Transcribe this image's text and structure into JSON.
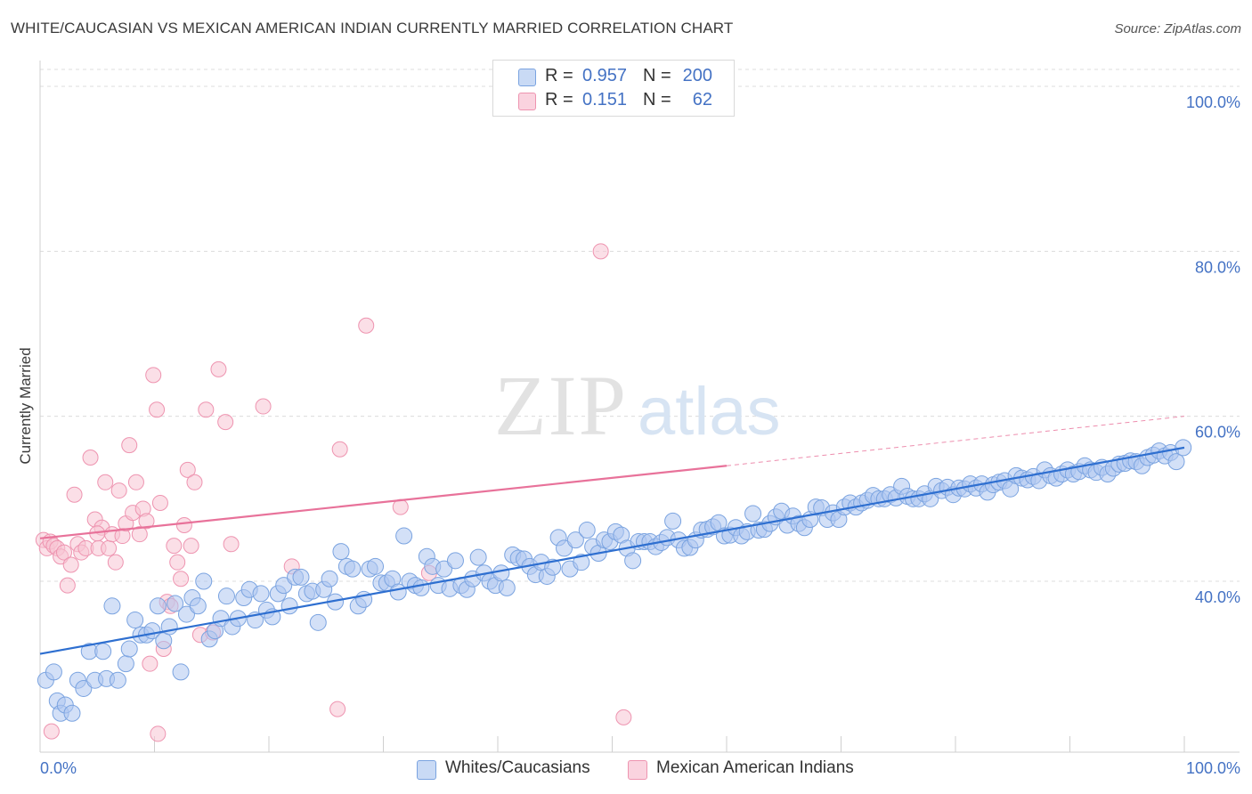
{
  "title": "WHITE/CAUCASIAN VS MEXICAN AMERICAN INDIAN CURRENTLY MARRIED CORRELATION CHART",
  "source": "Source: ZipAtlas.com",
  "watermark": {
    "zip": "ZIP",
    "atlas": "atlas"
  },
  "legend": {
    "rows": [
      {
        "r_label": "R =",
        "r_value": "0.957",
        "n_label": "N =",
        "n_value": "200",
        "color": "#aec7f0"
      },
      {
        "r_label": "R =",
        "r_value": "0.151",
        "n_label": "N =",
        "n_value": "62",
        "color": "#f7bfd0"
      }
    ]
  },
  "bottom_legend": [
    "Whites/Caucasians",
    "Mexican American Indians"
  ],
  "chart_data": {
    "type": "scatter",
    "title": "WHITE/CAUCASIAN VS MEXICAN AMERICAN INDIAN CURRENTLY MARRIED CORRELATION CHART",
    "xlabel": "",
    "ylabel": "Currently Married",
    "xlim": [
      0,
      100
    ],
    "ylim": [
      18,
      103
    ],
    "x_tick_labels": [
      "0.0%",
      "100.0%"
    ],
    "y_tick_labels": [
      "40.0%",
      "60.0%",
      "80.0%",
      "100.0%"
    ],
    "y_ticks": [
      40,
      60,
      80,
      100
    ],
    "grid": "horizontal dashed",
    "legend_position": "top-center",
    "colors": {
      "blue_fill": "#aec7f0",
      "blue_edge": "#7aa3e0",
      "blue_line": "#2e6fd0",
      "pink_fill": "#f7c4d3",
      "pink_edge": "#ee94b0",
      "pink_line": "#e8729a"
    },
    "series": [
      {
        "name": "Whites/Caucasians",
        "trend": {
          "x0": 0,
          "y0": 31.2,
          "x1": 100,
          "y1": 56.2
        },
        "points": [
          [
            0.5,
            28
          ],
          [
            1.2,
            29
          ],
          [
            1.5,
            25.5
          ],
          [
            1.8,
            24
          ],
          [
            2.2,
            25
          ],
          [
            2.8,
            24
          ],
          [
            3.3,
            28
          ],
          [
            3.8,
            27
          ],
          [
            4.3,
            31.5
          ],
          [
            4.8,
            28
          ],
          [
            5.5,
            31.5
          ],
          [
            5.8,
            28.2
          ],
          [
            6.3,
            37
          ],
          [
            6.8,
            28
          ],
          [
            7.5,
            30
          ],
          [
            7.8,
            31.8
          ],
          [
            8.3,
            35.3
          ],
          [
            8.8,
            33.5
          ],
          [
            9.3,
            33.5
          ],
          [
            9.8,
            34
          ],
          [
            10.3,
            37
          ],
          [
            10.8,
            32.8
          ],
          [
            11.3,
            34.5
          ],
          [
            11.8,
            37.3
          ],
          [
            12.3,
            29
          ],
          [
            12.8,
            36
          ],
          [
            13.3,
            38
          ],
          [
            13.8,
            37
          ],
          [
            14.3,
            40
          ],
          [
            14.8,
            33
          ],
          [
            15.3,
            34
          ],
          [
            15.8,
            35.5
          ],
          [
            16.3,
            38.2
          ],
          [
            16.8,
            34.5
          ],
          [
            17.3,
            35.5
          ],
          [
            17.8,
            38
          ],
          [
            18.3,
            39
          ],
          [
            18.8,
            35.3
          ],
          [
            19.3,
            38.5
          ],
          [
            19.8,
            36.5
          ],
          [
            20.3,
            35.7
          ],
          [
            20.8,
            38.5
          ],
          [
            21.3,
            39.5
          ],
          [
            21.8,
            37
          ],
          [
            22.3,
            40.5
          ],
          [
            22.8,
            40.5
          ],
          [
            23.3,
            38.5
          ],
          [
            23.8,
            38.8
          ],
          [
            24.3,
            35
          ],
          [
            24.8,
            39
          ],
          [
            25.3,
            40.3
          ],
          [
            25.8,
            37.5
          ],
          [
            26.3,
            43.6
          ],
          [
            26.8,
            41.8
          ],
          [
            27.3,
            41.5
          ],
          [
            27.8,
            37
          ],
          [
            28.3,
            37.8
          ],
          [
            28.8,
            41.5
          ],
          [
            29.3,
            41.8
          ],
          [
            29.8,
            39.8
          ],
          [
            30.3,
            39.8
          ],
          [
            30.8,
            40.3
          ],
          [
            31.3,
            38.7
          ],
          [
            31.8,
            45.5
          ],
          [
            32.3,
            40
          ],
          [
            32.8,
            39.5
          ],
          [
            33.3,
            39.2
          ],
          [
            33.8,
            43
          ],
          [
            34.3,
            41.8
          ],
          [
            34.8,
            39.5
          ],
          [
            35.3,
            41.5
          ],
          [
            35.8,
            39.1
          ],
          [
            36.3,
            42.5
          ],
          [
            36.8,
            39.5
          ],
          [
            37.3,
            39
          ],
          [
            37.8,
            40.3
          ],
          [
            38.3,
            42.9
          ],
          [
            38.8,
            41
          ],
          [
            39.3,
            40
          ],
          [
            39.8,
            39.5
          ],
          [
            40.3,
            41
          ],
          [
            40.8,
            39.2
          ],
          [
            41.3,
            43.2
          ],
          [
            41.8,
            42.8
          ],
          [
            42.3,
            42.7
          ],
          [
            42.8,
            41.8
          ],
          [
            43.3,
            40.8
          ],
          [
            43.8,
            42.3
          ],
          [
            44.3,
            40.6
          ],
          [
            44.8,
            41.7
          ],
          [
            45.3,
            45.3
          ],
          [
            45.8,
            44
          ],
          [
            46.3,
            41.5
          ],
          [
            46.8,
            45
          ],
          [
            47.3,
            42.3
          ],
          [
            47.8,
            46.2
          ],
          [
            48.3,
            44.2
          ],
          [
            48.8,
            43.4
          ],
          [
            49.3,
            45
          ],
          [
            49.8,
            44.8
          ],
          [
            50.3,
            46
          ],
          [
            50.8,
            45.6
          ],
          [
            51.3,
            44
          ],
          [
            51.8,
            42.5
          ],
          [
            52.3,
            44.8
          ],
          [
            52.8,
            44.8
          ],
          [
            53.3,
            44.8
          ],
          [
            53.8,
            44.2
          ],
          [
            54.3,
            44.7
          ],
          [
            54.8,
            45.3
          ],
          [
            55.3,
            47.3
          ],
          [
            55.8,
            45
          ],
          [
            56.3,
            44
          ],
          [
            56.8,
            44.1
          ],
          [
            57.3,
            45
          ],
          [
            57.8,
            46.2
          ],
          [
            58.3,
            46.3
          ],
          [
            58.8,
            46.6
          ],
          [
            59.3,
            47.1
          ],
          [
            59.8,
            45.5
          ],
          [
            60.3,
            45.6
          ],
          [
            60.8,
            46.5
          ],
          [
            61.3,
            45.5
          ],
          [
            61.8,
            46
          ],
          [
            62.3,
            48.2
          ],
          [
            62.8,
            46.2
          ],
          [
            63.3,
            46.3
          ],
          [
            63.8,
            47
          ],
          [
            64.3,
            47.8
          ],
          [
            64.8,
            48.5
          ],
          [
            65.3,
            46.8
          ],
          [
            65.8,
            47.9
          ],
          [
            66.3,
            47
          ],
          [
            66.8,
            46.5
          ],
          [
            67.3,
            47.5
          ],
          [
            67.8,
            49
          ],
          [
            68.3,
            48.9
          ],
          [
            68.8,
            47.5
          ],
          [
            69.3,
            48.3
          ],
          [
            69.8,
            47.5
          ],
          [
            70.3,
            49
          ],
          [
            70.8,
            49.5
          ],
          [
            71.3,
            49
          ],
          [
            71.8,
            49.5
          ],
          [
            72.3,
            49.8
          ],
          [
            72.8,
            50.4
          ],
          [
            73.3,
            50
          ],
          [
            73.8,
            50
          ],
          [
            74.3,
            50.5
          ],
          [
            74.8,
            50.1
          ],
          [
            75.3,
            51.5
          ],
          [
            75.8,
            50.3
          ],
          [
            76.3,
            50
          ],
          [
            76.8,
            50
          ],
          [
            77.3,
            50.6
          ],
          [
            77.8,
            50
          ],
          [
            78.3,
            51.5
          ],
          [
            78.8,
            51
          ],
          [
            79.3,
            51.4
          ],
          [
            79.8,
            50.5
          ],
          [
            80.3,
            51.3
          ],
          [
            80.8,
            51.2
          ],
          [
            81.3,
            51.8
          ],
          [
            81.8,
            51.3
          ],
          [
            82.3,
            51.8
          ],
          [
            82.8,
            50.8
          ],
          [
            83.3,
            51.7
          ],
          [
            83.8,
            52
          ],
          [
            84.3,
            52.2
          ],
          [
            84.8,
            51.2
          ],
          [
            85.3,
            52.8
          ],
          [
            85.8,
            52.5
          ],
          [
            86.3,
            52.3
          ],
          [
            86.8,
            52.7
          ],
          [
            87.3,
            52.2
          ],
          [
            87.8,
            53.5
          ],
          [
            88.3,
            52.8
          ],
          [
            88.8,
            52.5
          ],
          [
            89.3,
            53
          ],
          [
            89.8,
            53.5
          ],
          [
            90.3,
            53
          ],
          [
            90.8,
            53.3
          ],
          [
            91.3,
            54
          ],
          [
            91.8,
            53.5
          ],
          [
            92.3,
            53.2
          ],
          [
            92.8,
            53.8
          ],
          [
            93.3,
            53
          ],
          [
            93.8,
            53.7
          ],
          [
            94.3,
            54.2
          ],
          [
            94.8,
            54.3
          ],
          [
            95.3,
            54.6
          ],
          [
            95.8,
            54.5
          ],
          [
            96.3,
            54
          ],
          [
            96.8,
            55
          ],
          [
            97.3,
            55.3
          ],
          [
            97.8,
            55.8
          ],
          [
            98.3,
            55.2
          ],
          [
            98.8,
            55.6
          ],
          [
            99.3,
            54.5
          ],
          [
            99.9,
            56.2
          ]
        ]
      },
      {
        "name": "Mexican American Indians",
        "trend": {
          "x0": 0,
          "y0": 45.2,
          "x1": 60,
          "y1": 54
        },
        "dashed_extension": {
          "x0": 60,
          "y0": 54,
          "x1": 100,
          "y1": 60
        },
        "points": [
          [
            0.3,
            45
          ],
          [
            0.6,
            44
          ],
          [
            0.9,
            44.8
          ],
          [
            1.2,
            44.3
          ],
          [
            1.5,
            44
          ],
          [
            1.8,
            43
          ],
          [
            2.1,
            43.5
          ],
          [
            2.4,
            39.5
          ],
          [
            2.7,
            42
          ],
          [
            3,
            50.5
          ],
          [
            3.3,
            44.5
          ],
          [
            3.6,
            43.5
          ],
          [
            4,
            44
          ],
          [
            4.4,
            55
          ],
          [
            4.8,
            47.5
          ],
          [
            5.1,
            44
          ],
          [
            5.4,
            46.5
          ],
          [
            5.7,
            52
          ],
          [
            6,
            44
          ],
          [
            6.3,
            45.7
          ],
          [
            6.6,
            42.3
          ],
          [
            6.9,
            51
          ],
          [
            7.2,
            45.5
          ],
          [
            7.5,
            47
          ],
          [
            7.8,
            56.5
          ],
          [
            8.1,
            48.3
          ],
          [
            8.4,
            52
          ],
          [
            8.7,
            45.7
          ],
          [
            9,
            48.8
          ],
          [
            9.3,
            47.3
          ],
          [
            9.6,
            30
          ],
          [
            9.9,
            65
          ],
          [
            10.2,
            60.8
          ],
          [
            10.5,
            49.5
          ],
          [
            10.8,
            31.8
          ],
          [
            11.1,
            37.5
          ],
          [
            11.4,
            37
          ],
          [
            11.7,
            44.3
          ],
          [
            12,
            42.3
          ],
          [
            12.3,
            40.3
          ],
          [
            12.6,
            46.8
          ],
          [
            12.9,
            53.5
          ],
          [
            13.2,
            44.3
          ],
          [
            13.5,
            52
          ],
          [
            14,
            33.5
          ],
          [
            14.5,
            60.8
          ],
          [
            15.1,
            33.8
          ],
          [
            15.6,
            65.7
          ],
          [
            16.2,
            59.3
          ],
          [
            16.7,
            44.5
          ],
          [
            19.5,
            61.2
          ],
          [
            22,
            41.8
          ],
          [
            26,
            24.5
          ],
          [
            26.2,
            56
          ],
          [
            28.5,
            71
          ],
          [
            31.5,
            49
          ],
          [
            34,
            41
          ],
          [
            49,
            80
          ],
          [
            51,
            23.5
          ],
          [
            1,
            21.8
          ],
          [
            10.3,
            21.5
          ],
          [
            5,
            45.8
          ]
        ]
      }
    ]
  }
}
